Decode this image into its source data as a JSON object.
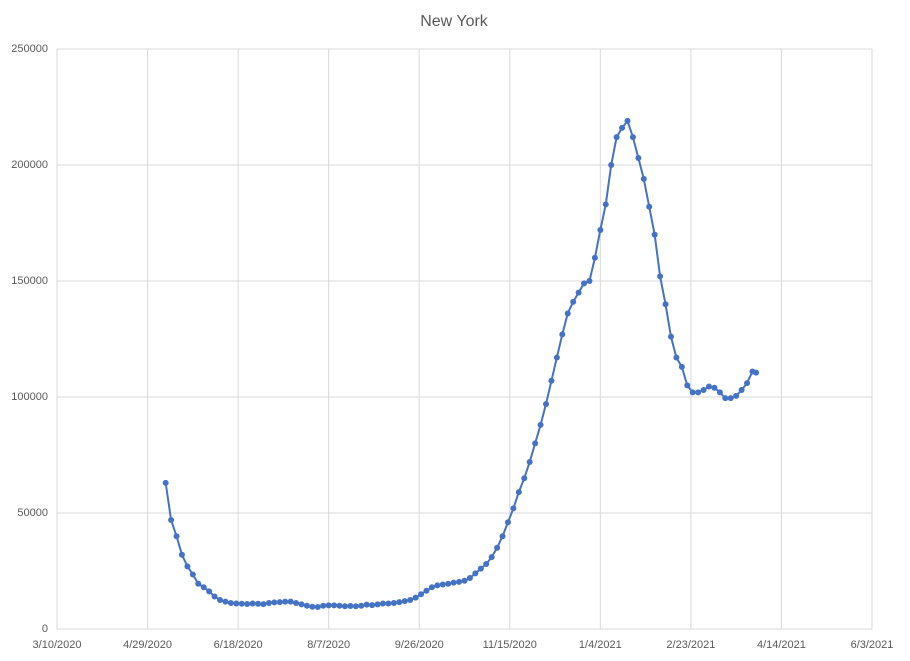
{
  "chart_data": {
    "type": "line",
    "title": "New York",
    "color": "#4472c4",
    "grid": true,
    "xlim": [
      "3/10/2020",
      "6/3/2021"
    ],
    "xticks": [
      "3/10/2020",
      "4/29/2020",
      "6/18/2020",
      "8/7/2020",
      "9/26/2020",
      "11/15/2020",
      "1/4/2021",
      "2/23/2021",
      "4/14/2021",
      "6/3/2021"
    ],
    "ylim": [
      0,
      250000
    ],
    "yticks": [
      0,
      50000,
      100000,
      150000,
      200000,
      250000
    ],
    "x": [
      "5/9/2020",
      "5/12/2020",
      "5/15/2020",
      "5/18/2020",
      "5/21/2020",
      "5/24/2020",
      "5/27/2020",
      "5/30/2020",
      "6/2/2020",
      "6/5/2020",
      "6/8/2020",
      "6/11/2020",
      "6/14/2020",
      "6/17/2020",
      "6/20/2020",
      "6/23/2020",
      "6/26/2020",
      "6/29/2020",
      "7/2/2020",
      "7/5/2020",
      "7/8/2020",
      "7/11/2020",
      "7/14/2020",
      "7/17/2020",
      "7/20/2020",
      "7/23/2020",
      "7/26/2020",
      "7/29/2020",
      "8/1/2020",
      "8/4/2020",
      "8/7/2020",
      "8/10/2020",
      "8/13/2020",
      "8/16/2020",
      "8/19/2020",
      "8/22/2020",
      "8/25/2020",
      "8/28/2020",
      "8/31/2020",
      "9/3/2020",
      "9/6/2020",
      "9/9/2020",
      "9/12/2020",
      "9/15/2020",
      "9/18/2020",
      "9/21/2020",
      "9/24/2020",
      "9/27/2020",
      "9/30/2020",
      "10/3/2020",
      "10/6/2020",
      "10/9/2020",
      "10/12/2020",
      "10/15/2020",
      "10/18/2020",
      "10/21/2020",
      "10/24/2020",
      "10/27/2020",
      "10/30/2020",
      "11/2/2020",
      "11/5/2020",
      "11/8/2020",
      "11/11/2020",
      "11/14/2020",
      "11/17/2020",
      "11/20/2020",
      "11/23/2020",
      "11/26/2020",
      "11/29/2020",
      "12/2/2020",
      "12/5/2020",
      "12/8/2020",
      "12/11/2020",
      "12/14/2020",
      "12/17/2020",
      "12/20/2020",
      "12/23/2020",
      "12/26/2020",
      "12/29/2020",
      "1/1/2021",
      "1/4/2021",
      "1/7/2021",
      "1/10/2021",
      "1/13/2021",
      "1/16/2021",
      "1/19/2021",
      "1/22/2021",
      "1/25/2021",
      "1/28/2021",
      "1/31/2021",
      "2/3/2021",
      "2/6/2021",
      "2/9/2021",
      "2/12/2021",
      "2/15/2021",
      "2/18/2021",
      "2/21/2021",
      "2/24/2021",
      "2/27/2021",
      "3/2/2021",
      "3/5/2021",
      "3/8/2021",
      "3/11/2021",
      "3/14/2021",
      "3/17/2021",
      "3/20/2021",
      "3/23/2021",
      "3/26/2021",
      "3/29/2021",
      "3/31/2021"
    ],
    "values": [
      63000,
      47000,
      40000,
      32000,
      27000,
      23500,
      19500,
      18000,
      16200,
      14000,
      12500,
      11800,
      11200,
      11000,
      10900,
      10800,
      11000,
      10900,
      10700,
      11200,
      11500,
      11600,
      11800,
      11800,
      11200,
      10600,
      10000,
      9600,
      9500,
      10000,
      10200,
      10200,
      10000,
      9800,
      9900,
      9800,
      10000,
      10500,
      10300,
      10600,
      11000,
      11000,
      11200,
      11600,
      12000,
      12500,
      13500,
      15000,
      16500,
      18000,
      18800,
      19200,
      19500,
      20000,
      20300,
      20800,
      22000,
      24000,
      26000,
      28000,
      31000,
      35000,
      40000,
      46000,
      52000,
      59000,
      65000,
      72000,
      80000,
      88000,
      97000,
      107000,
      117000,
      127000,
      136000,
      141000,
      145000,
      149000,
      150000,
      160000,
      172000,
      183000,
      200000,
      212000,
      216000,
      219000,
      212000,
      203000,
      194000,
      182000,
      170000,
      152000,
      140000,
      126000,
      117000,
      113000,
      105000,
      102000,
      102000,
      103000,
      104500,
      104000,
      102000,
      99500,
      99500,
      100500,
      103000,
      106000,
      111000,
      110500
    ]
  }
}
